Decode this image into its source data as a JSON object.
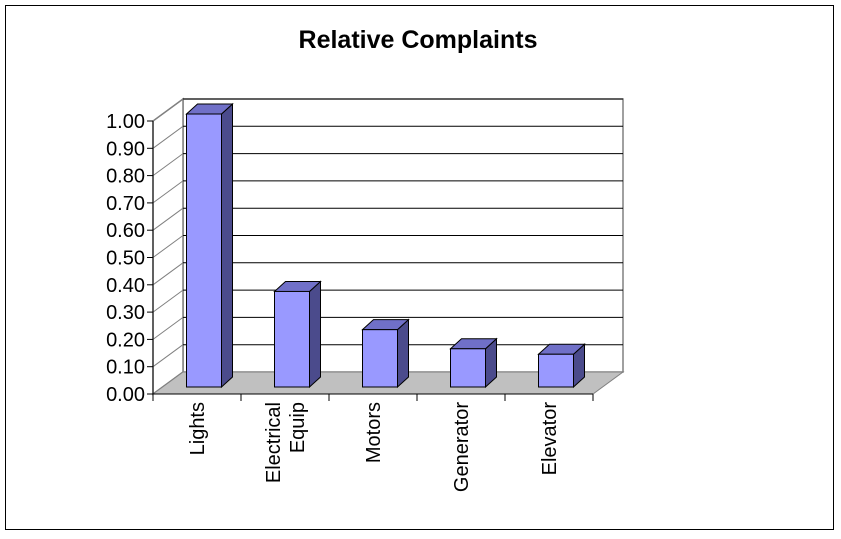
{
  "chart_data": {
    "type": "bar",
    "title": "Relative Complaints",
    "xlabel": "",
    "ylabel": "",
    "categories": [
      [
        "Lights"
      ],
      [
        "Electrical",
        "Equip"
      ],
      [
        "Motors"
      ],
      [
        "Generator"
      ],
      [
        "Elevator"
      ]
    ],
    "values": [
      1.0,
      0.35,
      0.21,
      0.14,
      0.12
    ],
    "ylim": [
      0,
      1
    ],
    "yticks": [
      "0.00",
      "0.10",
      "0.20",
      "0.30",
      "0.40",
      "0.50",
      "0.60",
      "0.70",
      "0.80",
      "0.90",
      "1.00"
    ],
    "grid": true,
    "legend": "none",
    "style": "3d-column",
    "colors": {
      "bar_front": "#9999ff",
      "bar_side": "#4b4b8c",
      "bar_top": "#7070c8",
      "floor": "#c0c0c0",
      "wall": "#ffffff",
      "grid": "#000000"
    }
  }
}
